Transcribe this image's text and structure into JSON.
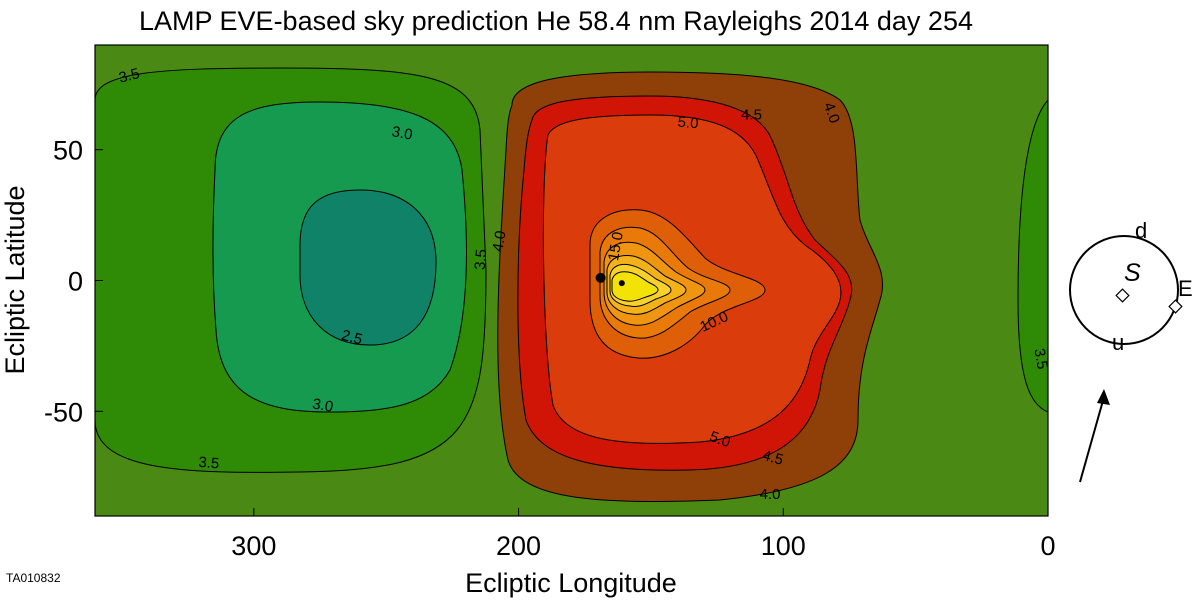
{
  "chart_data": {
    "type": "heatmap",
    "title": "LAMP EVE-based sky prediction He 58.4 nm Rayleighs 2014 day 254",
    "xlabel": "Ecliptic Longitude",
    "ylabel": "Ecliptic Latitude",
    "xlim": [
      360,
      0
    ],
    "ylim": [
      -90,
      90
    ],
    "x_reversed": true,
    "x_ticks": [
      300,
      200,
      100,
      0
    ],
    "y_ticks": [
      50,
      0,
      -50
    ],
    "x_tick_labels": [
      "300",
      "200",
      "100",
      "0"
    ],
    "y_tick_labels": [
      "50",
      "0",
      "-50"
    ],
    "contour_labels": [
      {
        "text": "3.5",
        "lon": 347,
        "lat": 78,
        "rotate": -15
      },
      {
        "text": "3.0",
        "lon": 244,
        "lat": 56,
        "rotate": 10
      },
      {
        "text": "2.5",
        "lon": 263,
        "lat": -22,
        "rotate": 15
      },
      {
        "text": "3.0",
        "lon": 274,
        "lat": -48,
        "rotate": 10
      },
      {
        "text": "3.5",
        "lon": 317,
        "lat": -70,
        "rotate": 5
      },
      {
        "text": "3.5",
        "lon": 214,
        "lat": 8,
        "rotate": -85
      },
      {
        "text": "4.0",
        "lon": 207,
        "lat": 15,
        "rotate": -80
      },
      {
        "text": "15.0",
        "lon": 163,
        "lat": 13,
        "rotate": -80
      },
      {
        "text": "10.0",
        "lon": 126,
        "lat": -16,
        "rotate": -25
      },
      {
        "text": "5.0",
        "lon": 136,
        "lat": 60,
        "rotate": 5
      },
      {
        "text": "4.5",
        "lon": 112,
        "lat": 63,
        "rotate": 0
      },
      {
        "text": "4.0",
        "lon": 82,
        "lat": 64,
        "rotate": 70
      },
      {
        "text": "5.0",
        "lon": 124,
        "lat": -61,
        "rotate": 20
      },
      {
        "text": "4.5",
        "lon": 104,
        "lat": -68,
        "rotate": 15
      },
      {
        "text": "4.0",
        "lon": 105,
        "lat": -82,
        "rotate": 0
      },
      {
        "text": "3.5",
        "lon": 3,
        "lat": -30,
        "rotate": 80
      }
    ],
    "markers": [
      {
        "kind": "dot",
        "lon": 169,
        "lat": 1
      },
      {
        "kind": "dot",
        "lon": 161,
        "lat": -1
      }
    ],
    "colors": {
      "background": "#4a8a14",
      "lt_3_5": "#2f8a06",
      "lt_3_0": "#159a50",
      "lt_2_5": "#108268",
      "4_0_to_4_5": "#8f3f08",
      "4_5_to_5_0": "#d01406",
      "5_0_to_10_0": "#db3c0c",
      "10_0_to_15_0": "#df5e08",
      "inner_1": "#e97a0a",
      "inner_2": "#f09512",
      "inner_3": "#f4b21a",
      "inner_4": "#f8d22a",
      "core": "#f2e205"
    }
  },
  "inset": {
    "labels": {
      "d": "d",
      "S": "S",
      "E": "E",
      "u": "u"
    }
  },
  "figure_id": "TA010832"
}
